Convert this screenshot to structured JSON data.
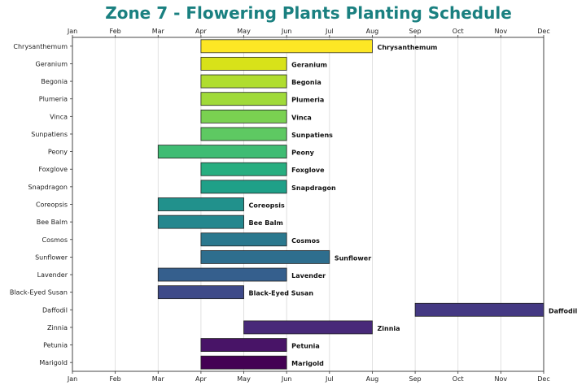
{
  "chart_data": {
    "type": "bar",
    "orientation": "horizontal-gantt",
    "title": "Zone 7 - Flowering Plants Planting Schedule",
    "xlabel": "",
    "ylabel": "",
    "x_ticks": [
      "Jan",
      "Feb",
      "Mar",
      "Apr",
      "May",
      "Jun",
      "Jul",
      "Aug",
      "Sep",
      "Oct",
      "Nov",
      "Dec"
    ],
    "x_range": [
      "Jan",
      "Dec"
    ],
    "grid": "vertical",
    "colormap": "viridis",
    "tasks": [
      {
        "name": "Chrysanthemum",
        "start": "Apr",
        "end": "Aug",
        "color": "#fde725"
      },
      {
        "name": "Geranium",
        "start": "Apr",
        "end": "Jun",
        "color": "#d8e219"
      },
      {
        "name": "Begonia",
        "start": "Apr",
        "end": "Jun",
        "color": "#b0dd2f"
      },
      {
        "name": "Plumeria",
        "start": "Apr",
        "end": "Jun",
        "color": "#a0da39"
      },
      {
        "name": "Vinca",
        "start": "Apr",
        "end": "Jun",
        "color": "#7ad151"
      },
      {
        "name": "Sunpatiens",
        "start": "Apr",
        "end": "Jun",
        "color": "#5ec962"
      },
      {
        "name": "Peony",
        "start": "Mar",
        "end": "Jun",
        "color": "#3fbc73"
      },
      {
        "name": "Foxglove",
        "start": "Apr",
        "end": "Jun",
        "color": "#28ae80"
      },
      {
        "name": "Snapdragon",
        "start": "Apr",
        "end": "Jun",
        "color": "#1fa088"
      },
      {
        "name": "Coreopsis",
        "start": "Mar",
        "end": "May",
        "color": "#21918c"
      },
      {
        "name": "Bee Balm",
        "start": "Mar",
        "end": "May",
        "color": "#24878e"
      },
      {
        "name": "Cosmos",
        "start": "Apr",
        "end": "Jun",
        "color": "#2a788e"
      },
      {
        "name": "Sunflower",
        "start": "Apr",
        "end": "Jul",
        "color": "#2e6e8e"
      },
      {
        "name": "Lavender",
        "start": "Mar",
        "end": "Jun",
        "color": "#355f8d"
      },
      {
        "name": "Black-Eyed Susan",
        "start": "Mar",
        "end": "May",
        "color": "#3e4a89"
      },
      {
        "name": "Daffodil",
        "start": "Sep",
        "end": "Dec",
        "color": "#443983"
      },
      {
        "name": "Zinnia",
        "start": "May",
        "end": "Aug",
        "color": "#482979"
      },
      {
        "name": "Petunia",
        "start": "Apr",
        "end": "Jun",
        "color": "#481467"
      },
      {
        "name": "Marigold",
        "start": "Apr",
        "end": "Jun",
        "color": "#440154"
      }
    ]
  }
}
